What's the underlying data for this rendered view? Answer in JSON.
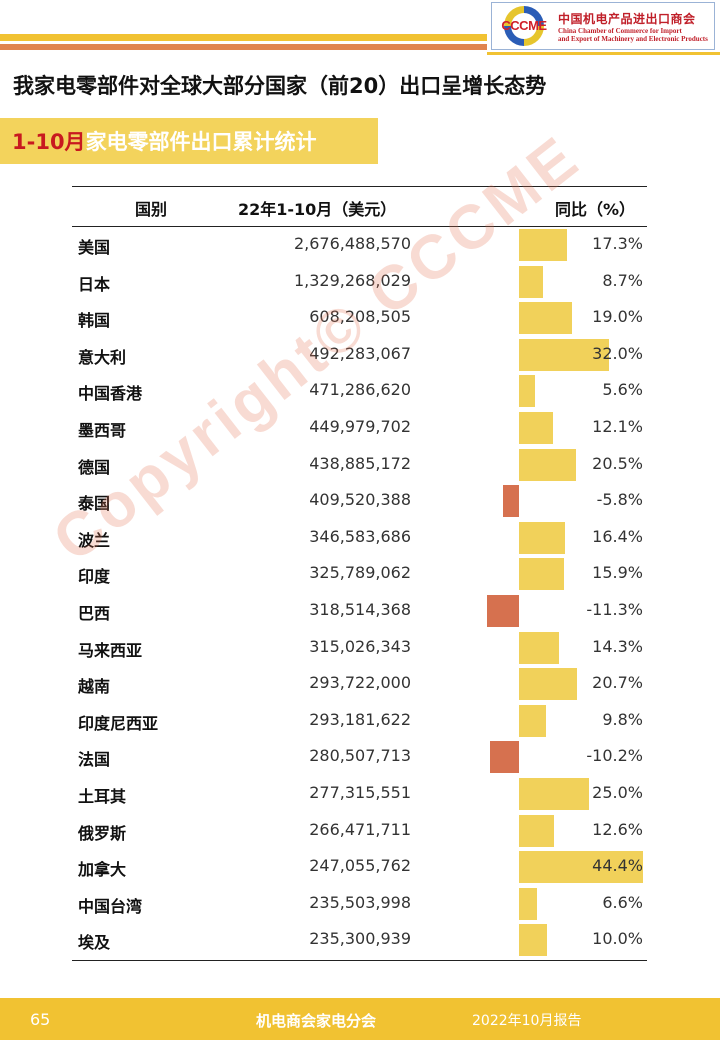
{
  "header": {
    "logo_abbr": "CCCME",
    "org_cn": "中国机电产品进出口商会",
    "org_en_line1": "China Chamber of Commerce for Import",
    "org_en_line2": "and Export of Machinery and Electronic Products"
  },
  "title": "我家电零部件对全球大部分国家（前20）出口呈增长态势",
  "subtitle": {
    "highlight": "1-10月",
    "rest": "家电零部件出口累计统计"
  },
  "watermark": "Copyright© CCCME",
  "table": {
    "col_country": "国别",
    "col_value": "22年1-10月（美元）",
    "col_yoy": "同比（%）"
  },
  "chart_data": {
    "type": "table",
    "categories": [
      "美国",
      "日本",
      "韩国",
      "意大利",
      "中国香港",
      "墨西哥",
      "德国",
      "泰国",
      "波兰",
      "印度",
      "巴西",
      "马来西亚",
      "越南",
      "印度尼西亚",
      "法国",
      "土耳其",
      "俄罗斯",
      "加拿大",
      "中国台湾",
      "埃及"
    ],
    "value_labels": [
      "2,676,488,570",
      "1,329,268,029",
      "608,208,505",
      "492,283,067",
      "471,286,620",
      "449,979,702",
      "438,885,172",
      "409,520,388",
      "346,583,686",
      "325,789,062",
      "318,514,368",
      "315,026,343",
      "293,722,000",
      "293,181,622",
      "280,507,713",
      "277,315,551",
      "266,471,711",
      "247,055,762",
      "235,503,998",
      "235,300,939"
    ],
    "yoy": [
      17.3,
      8.7,
      19.0,
      32.0,
      5.6,
      12.1,
      20.5,
      -5.8,
      16.4,
      15.9,
      -11.3,
      14.3,
      20.7,
      9.8,
      -10.2,
      25.0,
      12.6,
      44.4,
      6.6,
      10.0
    ],
    "yoy_labels": [
      "17.3%",
      "8.7%",
      "19.0%",
      "32.0%",
      "5.6%",
      "12.1%",
      "20.5%",
      "-5.8%",
      "16.4%",
      "15.9%",
      "-11.3%",
      "14.3%",
      "20.7%",
      "9.8%",
      "-10.2%",
      "25.0%",
      "12.6%",
      "44.4%",
      "6.6%",
      "10.0%"
    ],
    "colors": {
      "positive": "#f1d15a",
      "negative": "#d6714f"
    }
  },
  "footer": {
    "page": "65",
    "center": "机电商会家电分会",
    "right": "2022年10月报告"
  }
}
